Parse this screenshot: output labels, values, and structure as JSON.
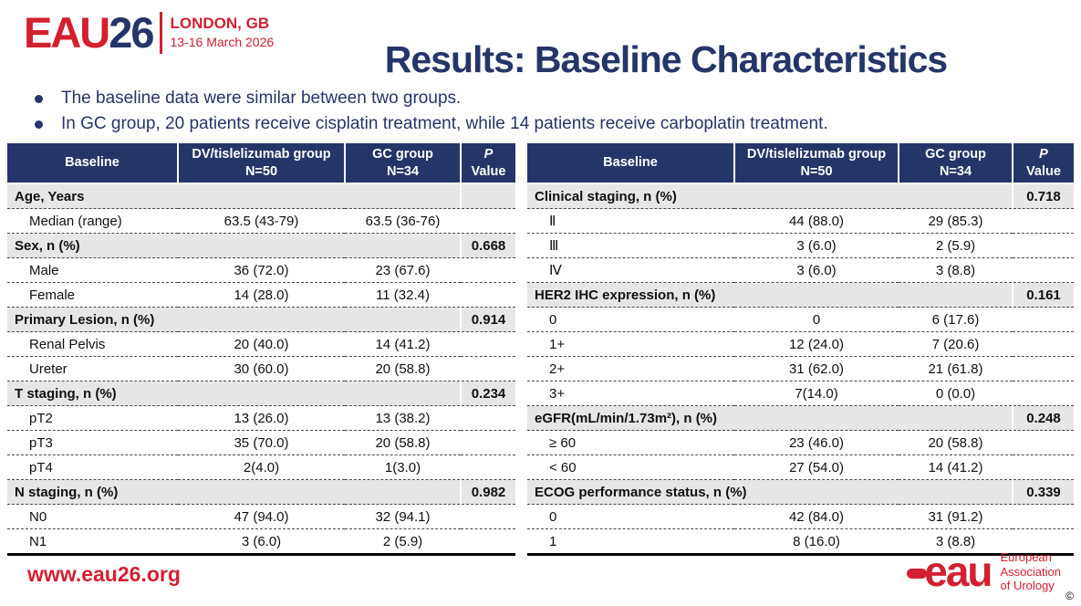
{
  "colors": {
    "navy": "#263569",
    "red": "#D22030",
    "category_bg": "#E7E6E6",
    "table_border": "#000000"
  },
  "logo": {
    "eau": "EAU",
    "year": "26",
    "location": "LONDON, GB",
    "dates": "13-16 March 2026"
  },
  "title": "Results: Baseline Characteristics",
  "bullets": [
    "The baseline data were similar between two groups.",
    "In GC group, 20 patients receive cisplatin treatment, while 14 patients receive carboplatin treatment."
  ],
  "tables": {
    "left": {
      "columns": [
        {
          "label": "Baseline",
          "sub": ""
        },
        {
          "label": "DV/tislelizumab group",
          "sub": "N=50"
        },
        {
          "label": "GC group",
          "sub": "N=34"
        },
        {
          "label": "P",
          "sub": "Value"
        }
      ],
      "rows": [
        {
          "type": "category",
          "label": "Age, Years",
          "p": ""
        },
        {
          "type": "data",
          "label": "Median (range)",
          "dv": "63.5 (43-79)",
          "gc": "63.5 (36-76)",
          "p": ""
        },
        {
          "type": "category",
          "label": "Sex, n (%)",
          "p": "0.668"
        },
        {
          "type": "data",
          "label": "Male",
          "dv": "36 (72.0)",
          "gc": "23 (67.6)",
          "p": ""
        },
        {
          "type": "data",
          "label": "Female",
          "dv": "14 (28.0)",
          "gc": "11 (32.4)",
          "p": ""
        },
        {
          "type": "category",
          "label": "Primary Lesion, n (%)",
          "p": "0.914"
        },
        {
          "type": "data",
          "label": "Renal Pelvis",
          "dv": "20 (40.0)",
          "gc": "14 (41.2)",
          "p": ""
        },
        {
          "type": "data",
          "label": "Ureter",
          "dv": "30 (60.0)",
          "gc": "20 (58.8)",
          "p": ""
        },
        {
          "type": "category",
          "label": "T staging, n (%)",
          "p": "0.234"
        },
        {
          "type": "data",
          "label": "pT2",
          "dv": "13 (26.0)",
          "gc": "13 (38.2)",
          "p": ""
        },
        {
          "type": "data",
          "label": "pT3",
          "dv": "35 (70.0)",
          "gc": "20 (58.8)",
          "p": ""
        },
        {
          "type": "data",
          "label": "pT4",
          "dv": "2(4.0)",
          "gc": "1(3.0)",
          "p": ""
        },
        {
          "type": "category",
          "label": "N staging, n (%)",
          "p": "0.982"
        },
        {
          "type": "data",
          "label": "N0",
          "dv": "47 (94.0)",
          "gc": "32 (94.1)",
          "p": ""
        },
        {
          "type": "data",
          "label": "N1",
          "dv": "3 (6.0)",
          "gc": "2 (5.9)",
          "p": ""
        }
      ]
    },
    "right": {
      "columns": [
        {
          "label": "Baseline",
          "sub": ""
        },
        {
          "label": "DV/tislelizumab group",
          "sub": "N=50"
        },
        {
          "label": "GC group",
          "sub": "N=34"
        },
        {
          "label": "P",
          "sub": "Value"
        }
      ],
      "rows": [
        {
          "type": "category",
          "label": "Clinical staging, n (%)",
          "p": "0.718"
        },
        {
          "type": "data",
          "label": "Ⅱ",
          "dv": "44 (88.0)",
          "gc": "29 (85.3)",
          "p": ""
        },
        {
          "type": "data",
          "label": "Ⅲ",
          "dv": "3 (6.0)",
          "gc": "2 (5.9)",
          "p": ""
        },
        {
          "type": "data",
          "label": "Ⅳ",
          "dv": "3 (6.0)",
          "gc": "3 (8.8)",
          "p": ""
        },
        {
          "type": "category",
          "label": "HER2 IHC expression, n (%)",
          "p": "0.161"
        },
        {
          "type": "data",
          "label": "0",
          "dv": "0",
          "gc": "6 (17.6)",
          "p": ""
        },
        {
          "type": "data",
          "label": "1+",
          "dv": "12 (24.0)",
          "gc": "7 (20.6)",
          "p": ""
        },
        {
          "type": "data",
          "label": "2+",
          "dv": "31 (62.0)",
          "gc": "21 (61.8)",
          "p": ""
        },
        {
          "type": "data",
          "label": "3+",
          "dv": "7(14.0)",
          "gc": "0 (0.0)",
          "p": ""
        },
        {
          "type": "category",
          "label": "eGFR(mL/min/1.73m²), n (%)",
          "p": "0.248"
        },
        {
          "type": "data",
          "label": "≥ 60",
          "dv": "23 (46.0)",
          "gc": "20 (58.8)",
          "p": ""
        },
        {
          "type": "data",
          "label": "< 60",
          "dv": "27 (54.0)",
          "gc": "14 (41.2)",
          "p": ""
        },
        {
          "type": "category",
          "label": "ECOG performance status, n (%)",
          "p": "0.339"
        },
        {
          "type": "data",
          "label": "0",
          "dv": "42 (84.0)",
          "gc": "31 (91.2)",
          "p": ""
        },
        {
          "type": "data",
          "label": "1",
          "dv": "8 (16.0)",
          "gc": "3 (8.8)",
          "p": ""
        }
      ]
    }
  },
  "footer": {
    "url": "www.eau26.org",
    "org_abbrev": "eau",
    "org_lines": [
      "European",
      "Association",
      "of Urology"
    ],
    "copyright": "©"
  }
}
